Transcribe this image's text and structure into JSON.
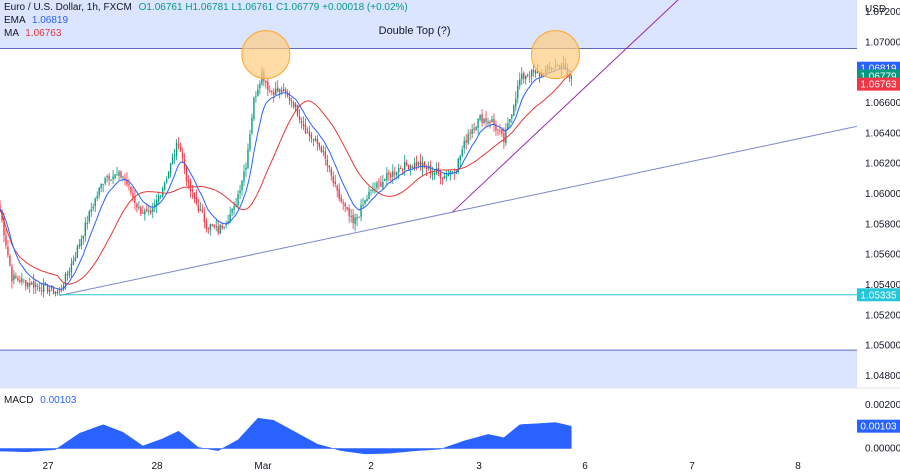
{
  "header": {
    "symbol": "Euro / U.S. Dollar, 1h, FXCM",
    "open": "O1.06761",
    "high": "H1.06781",
    "low": "L1.06761",
    "close": "C1.06779",
    "change": "+0.00018 (+0.02%)",
    "ema_label": "EMA",
    "ema_value": "1.06819",
    "ma_label": "MA",
    "ma_value": "1.06763",
    "macd_label": "MACD",
    "macd_value": "0.00103"
  },
  "colors": {
    "up": "#089981",
    "down": "#f23645",
    "ema": "#2962ff",
    "ma": "#e53935",
    "zone": "#dbe5ff",
    "trend": "#7986cb",
    "channel": "#9c27b0",
    "support": "#26c6da",
    "macd": "#2962ff",
    "circle": "#ffcc80"
  },
  "chart_data": [
    {
      "type": "candlestick",
      "title": "Double Top (?)",
      "y_axis_unit": "USD",
      "ylim": [
        1.0472,
        1.0728
      ],
      "x_tick_labels": [
        "27",
        "28",
        "Mar",
        "2",
        "3",
        "6",
        "7",
        "8"
      ],
      "y_tick_labels": [
        "1.07200",
        "1.07000",
        "1.06800",
        "1.06600",
        "1.06400",
        "1.06200",
        "1.06000",
        "1.05800",
        "1.05600",
        "1.05400",
        "1.05200",
        "1.05000",
        "1.04800"
      ],
      "price_labels": {
        "ema": "1.06819",
        "close": "1.06779",
        "ma": "1.06763",
        "support": "1.05335"
      },
      "support_level": 1.05335,
      "resistance_zone": [
        1.0696,
        1.0728
      ],
      "lower_zone": [
        1.0472,
        1.0497
      ],
      "annotations": [
        "Double Top (?)"
      ],
      "series": [
        {
          "name": "EMA",
          "value": 1.06819
        },
        {
          "name": "MA",
          "value": 1.06763
        }
      ],
      "approx_close_path": [
        [
          0,
          1.059
        ],
        [
          6,
          1.0545
        ],
        [
          15,
          1.0541
        ],
        [
          23,
          1.0538
        ],
        [
          30,
          1.0535
        ],
        [
          38,
          1.056
        ],
        [
          46,
          1.059
        ],
        [
          53,
          1.0612
        ],
        [
          62,
          1.0612
        ],
        [
          70,
          1.059
        ],
        [
          76,
          1.0585
        ],
        [
          85,
          1.0615
        ],
        [
          90,
          1.0635
        ],
        [
          95,
          1.0605
        ],
        [
          104,
          1.058
        ],
        [
          110,
          1.0576
        ],
        [
          118,
          1.059
        ],
        [
          124,
          1.062
        ],
        [
          128,
          1.0662
        ],
        [
          132,
          1.068
        ],
        [
          136,
          1.0668
        ],
        [
          142,
          1.0668
        ],
        [
          148,
          1.066
        ],
        [
          155,
          1.064
        ],
        [
          162,
          1.063
        ],
        [
          170,
          1.06
        ],
        [
          178,
          1.058
        ],
        [
          186,
          1.06
        ],
        [
          194,
          1.061
        ],
        [
          202,
          1.0618
        ],
        [
          210,
          1.062
        ],
        [
          218,
          1.0615
        ],
        [
          224,
          1.0612
        ],
        [
          230,
          1.0618
        ],
        [
          236,
          1.064
        ],
        [
          242,
          1.065
        ],
        [
          248,
          1.0648
        ],
        [
          254,
          1.0635
        ],
        [
          258,
          1.0655
        ],
        [
          262,
          1.0675
        ],
        [
          266,
          1.068
        ],
        [
          272,
          1.0679
        ],
        [
          278,
          1.0683
        ],
        [
          283,
          1.0686
        ],
        [
          286,
          1.0678
        ],
        [
          288,
          1.0676
        ]
      ]
    },
    {
      "type": "area",
      "title": "MACD",
      "value": 0.00103,
      "ylim": [
        -0.0003,
        0.0027
      ],
      "y_tick_labels": [
        "0.00200",
        "0.00100",
        "0.00000"
      ],
      "approx_values": [
        [
          0,
          -0.00012
        ],
        [
          14,
          -0.00015
        ],
        [
          28,
          -5e-05
        ],
        [
          40,
          0.0007
        ],
        [
          52,
          0.0011
        ],
        [
          62,
          0.00075
        ],
        [
          72,
          0.00012
        ],
        [
          82,
          0.00045
        ],
        [
          90,
          0.0008
        ],
        [
          100,
          5e-05
        ],
        [
          110,
          -0.0001
        ],
        [
          120,
          0.0004
        ],
        [
          130,
          0.0014
        ],
        [
          138,
          0.0013
        ],
        [
          148,
          0.0008
        ],
        [
          160,
          0.0002
        ],
        [
          172,
          -0.0001
        ],
        [
          184,
          -0.00025
        ],
        [
          196,
          -0.00022
        ],
        [
          210,
          -0.0001
        ],
        [
          222,
          -3e-05
        ],
        [
          234,
          0.00035
        ],
        [
          246,
          0.00065
        ],
        [
          254,
          0.0005
        ],
        [
          262,
          0.0011
        ],
        [
          272,
          0.00115
        ],
        [
          280,
          0.0012
        ],
        [
          288,
          0.00103
        ]
      ]
    }
  ]
}
